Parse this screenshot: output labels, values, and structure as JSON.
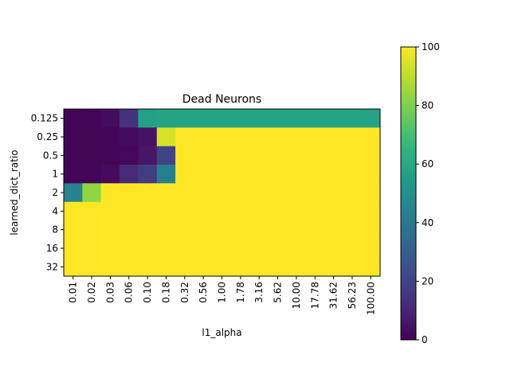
{
  "chart_data": {
    "type": "heatmap",
    "title": "Dead Neurons",
    "xlabel": "l1_alpha",
    "ylabel": "learned_dict_ratio",
    "x_categories": [
      "0.01",
      "0.02",
      "0.03",
      "0.06",
      "0.10",
      "0.18",
      "0.32",
      "0.56",
      "1.00",
      "1.78",
      "3.16",
      "5.62",
      "10.00",
      "17.78",
      "31.62",
      "56.23",
      "100.00"
    ],
    "y_categories": [
      "0.125",
      "0.25",
      "0.5",
      "1",
      "2",
      "4",
      "8",
      "16",
      "32"
    ],
    "values": [
      [
        1,
        1,
        3,
        14,
        57,
        58,
        58,
        58,
        58,
        58,
        58,
        58,
        58,
        58,
        58,
        58,
        58
      ],
      [
        1,
        1,
        1,
        3,
        5,
        94,
        100,
        100,
        100,
        100,
        100,
        100,
        100,
        100,
        100,
        100,
        100
      ],
      [
        1,
        1,
        1,
        2,
        6,
        20,
        100,
        100,
        100,
        100,
        100,
        100,
        100,
        100,
        100,
        100,
        100
      ],
      [
        1,
        1,
        3,
        12,
        18,
        43,
        100,
        100,
        100,
        100,
        100,
        100,
        100,
        100,
        100,
        100,
        100
      ],
      [
        45,
        83,
        100,
        100,
        100,
        100,
        100,
        100,
        100,
        100,
        100,
        100,
        100,
        100,
        100,
        100,
        100
      ],
      [
        100,
        100,
        100,
        100,
        100,
        100,
        100,
        100,
        100,
        100,
        100,
        100,
        100,
        100,
        100,
        100,
        100
      ],
      [
        100,
        100,
        100,
        100,
        100,
        100,
        100,
        100,
        100,
        100,
        100,
        100,
        100,
        100,
        100,
        100,
        100
      ],
      [
        100,
        100,
        100,
        100,
        100,
        100,
        100,
        100,
        100,
        100,
        100,
        100,
        100,
        100,
        100,
        100,
        100
      ],
      [
        100,
        100,
        100,
        100,
        100,
        100,
        100,
        100,
        100,
        100,
        100,
        100,
        100,
        100,
        100,
        100,
        100
      ]
    ],
    "colorbar": {
      "colormap": "viridis",
      "range": [
        0,
        100
      ],
      "ticks": [
        "0",
        "20",
        "40",
        "60",
        "80",
        "100"
      ]
    },
    "grid": false
  }
}
